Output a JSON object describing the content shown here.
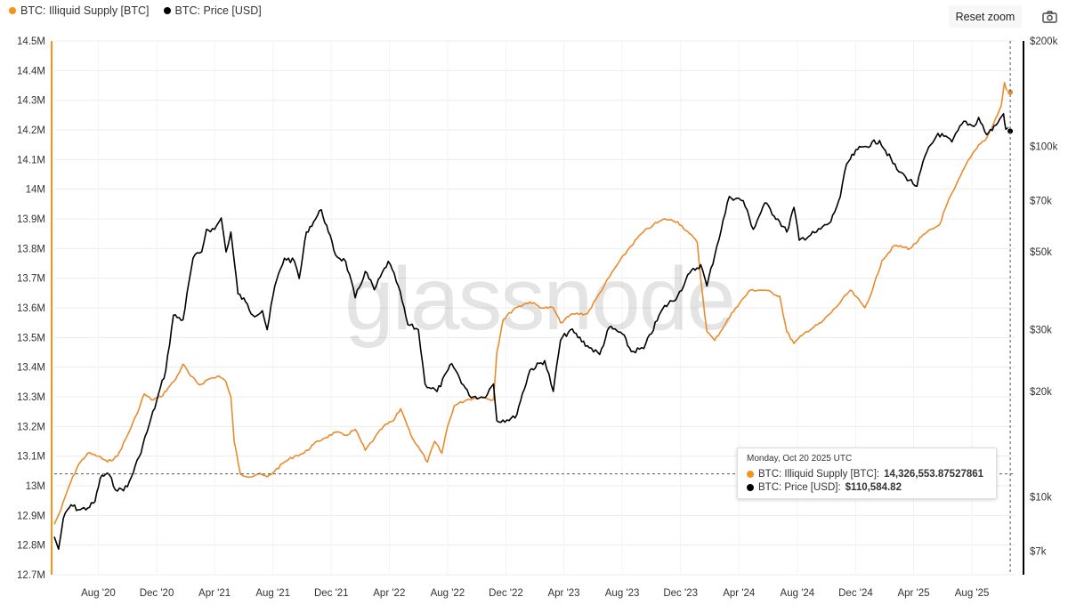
{
  "legend": {
    "series1": "BTC: Illiquid Supply [BTC]",
    "series2": "BTC: Price [USD]"
  },
  "toolbar": {
    "reset_label": "Reset zoom"
  },
  "icons": {
    "camera": "camera-icon"
  },
  "watermark": "glassnode",
  "colors": {
    "supply": "#f7931a",
    "supply_line": "#e98b2c",
    "price": "#000000"
  },
  "tooltip": {
    "date": "Monday, Oct 20 2025 UTC",
    "supply_label": "BTC: Illiquid Supply [BTC]: ",
    "supply_value": "14,326,553.87527861",
    "price_label": "BTC: Price [USD]: ",
    "price_value": "$110,584.82"
  },
  "chart_data": {
    "type": "line",
    "x_ticks": [
      "Aug '20",
      "Dec '20",
      "Apr '21",
      "Aug '21",
      "Dec '21",
      "Apr '22",
      "Aug '22",
      "Dec '22",
      "Apr '23",
      "Aug '23",
      "Dec '23",
      "Apr '24",
      "Aug '24",
      "Dec '24",
      "Apr '25",
      "Aug '25"
    ],
    "y_left_ticks": [
      "12.7M",
      "12.8M",
      "12.9M",
      "13M",
      "13.1M",
      "13.2M",
      "13.3M",
      "13.4M",
      "13.5M",
      "13.6M",
      "13.7M",
      "13.8M",
      "13.9M",
      "14M",
      "14.1M",
      "14.2M",
      "14.3M",
      "14.4M",
      "14.5M"
    ],
    "y_left_range": [
      12.7,
      14.5
    ],
    "y_right_ticks": [
      "$7k",
      "$10k",
      "$20k",
      "$30k",
      "$50k",
      "$70k",
      "$100k",
      "$200k"
    ],
    "y_right_values": [
      7000,
      10000,
      20000,
      30000,
      50000,
      70000,
      100000,
      200000
    ],
    "y_right_scale": "log",
    "x_range": [
      "2020-05-01",
      "2025-10-31"
    ],
    "grid": true,
    "legend_position": "top-left",
    "series": [
      {
        "name": "BTC: Illiquid Supply [BTC]",
        "axis": "left",
        "unit": "M BTC",
        "points": [
          [
            "2020-05-01",
            12.87
          ],
          [
            "2020-05-15",
            12.92
          ],
          [
            "2020-06-01",
            13.0
          ],
          [
            "2020-06-20",
            13.07
          ],
          [
            "2020-07-10",
            13.11
          ],
          [
            "2020-08-01",
            13.1
          ],
          [
            "2020-08-20",
            13.08
          ],
          [
            "2020-09-10",
            13.1
          ],
          [
            "2020-10-01",
            13.17
          ],
          [
            "2020-10-20",
            13.24
          ],
          [
            "2020-11-05",
            13.31
          ],
          [
            "2020-11-20",
            13.29
          ],
          [
            "2020-12-10",
            13.3
          ],
          [
            "2020-12-25",
            13.33
          ],
          [
            "2021-01-10",
            13.36
          ],
          [
            "2021-01-25",
            13.41
          ],
          [
            "2021-02-10",
            13.37
          ],
          [
            "2021-03-01",
            13.34
          ],
          [
            "2021-03-20",
            13.36
          ],
          [
            "2021-04-10",
            13.37
          ],
          [
            "2021-04-25",
            13.35
          ],
          [
            "2021-05-05",
            13.3
          ],
          [
            "2021-05-12",
            13.15
          ],
          [
            "2021-05-25",
            13.04
          ],
          [
            "2021-06-15",
            13.03
          ],
          [
            "2021-07-01",
            13.04
          ],
          [
            "2021-07-20",
            13.03
          ],
          [
            "2021-08-05",
            13.05
          ],
          [
            "2021-08-25",
            13.08
          ],
          [
            "2021-09-15",
            13.1
          ],
          [
            "2021-10-05",
            13.11
          ],
          [
            "2021-10-25",
            13.14
          ],
          [
            "2021-11-15",
            13.16
          ],
          [
            "2021-12-10",
            13.18
          ],
          [
            "2021-12-31",
            13.17
          ],
          [
            "2022-01-20",
            13.19
          ],
          [
            "2022-02-10",
            13.12
          ],
          [
            "2022-03-01",
            13.16
          ],
          [
            "2022-03-20",
            13.2
          ],
          [
            "2022-04-10",
            13.22
          ],
          [
            "2022-04-25",
            13.26
          ],
          [
            "2022-05-05",
            13.22
          ],
          [
            "2022-05-20",
            13.16
          ],
          [
            "2022-06-05",
            13.12
          ],
          [
            "2022-06-20",
            13.08
          ],
          [
            "2022-07-05",
            13.15
          ],
          [
            "2022-07-20",
            13.11
          ],
          [
            "2022-08-01",
            13.2
          ],
          [
            "2022-08-15",
            13.27
          ],
          [
            "2022-09-10",
            13.29
          ],
          [
            "2022-10-10",
            13.3
          ],
          [
            "2022-11-05",
            13.29
          ],
          [
            "2022-11-12",
            13.45
          ],
          [
            "2022-11-25",
            13.56
          ],
          [
            "2022-12-20",
            13.6
          ],
          [
            "2023-01-20",
            13.62
          ],
          [
            "2023-02-15",
            13.6
          ],
          [
            "2023-03-10",
            13.6
          ],
          [
            "2023-03-25",
            13.55
          ],
          [
            "2023-04-20",
            13.58
          ],
          [
            "2023-05-20",
            13.58
          ],
          [
            "2023-06-15",
            13.65
          ],
          [
            "2023-07-15",
            13.73
          ],
          [
            "2023-08-15",
            13.8
          ],
          [
            "2023-09-10",
            13.85
          ],
          [
            "2023-10-05",
            13.88
          ],
          [
            "2023-10-30",
            13.9
          ],
          [
            "2023-11-25",
            13.89
          ],
          [
            "2023-12-20",
            13.85
          ],
          [
            "2024-01-05",
            13.82
          ],
          [
            "2024-01-12",
            13.7
          ],
          [
            "2024-01-25",
            13.52
          ],
          [
            "2024-02-10",
            13.49
          ],
          [
            "2024-03-05",
            13.55
          ],
          [
            "2024-03-25",
            13.6
          ],
          [
            "2024-04-25",
            13.66
          ],
          [
            "2024-05-25",
            13.66
          ],
          [
            "2024-06-25",
            13.64
          ],
          [
            "2024-07-10",
            13.52
          ],
          [
            "2024-07-25",
            13.48
          ],
          [
            "2024-08-20",
            13.52
          ],
          [
            "2024-09-20",
            13.55
          ],
          [
            "2024-10-20",
            13.6
          ],
          [
            "2024-11-20",
            13.66
          ],
          [
            "2024-12-20",
            13.6
          ],
          [
            "2025-01-05",
            13.66
          ],
          [
            "2025-01-25",
            13.76
          ],
          [
            "2025-02-20",
            13.81
          ],
          [
            "2025-03-25",
            13.8
          ],
          [
            "2025-04-25",
            13.85
          ],
          [
            "2025-05-25",
            13.88
          ],
          [
            "2025-06-10",
            13.95
          ],
          [
            "2025-06-25",
            14.0
          ],
          [
            "2025-07-25",
            14.1
          ],
          [
            "2025-08-15",
            14.15
          ],
          [
            "2025-08-31",
            14.17
          ],
          [
            "2025-09-15",
            14.22
          ],
          [
            "2025-10-01",
            14.28
          ],
          [
            "2025-10-08",
            14.36
          ],
          [
            "2025-10-14",
            14.33
          ],
          [
            "2025-10-20",
            14.327
          ]
        ]
      },
      {
        "name": "BTC: Price [USD]",
        "axis": "right",
        "unit": "USD",
        "points": [
          [
            "2020-05-01",
            7700
          ],
          [
            "2020-05-10",
            7100
          ],
          [
            "2020-05-20",
            8700
          ],
          [
            "2020-06-05",
            9500
          ],
          [
            "2020-06-20",
            9200
          ],
          [
            "2020-07-10",
            9300
          ],
          [
            "2020-07-25",
            9700
          ],
          [
            "2020-08-05",
            11300
          ],
          [
            "2020-08-20",
            11700
          ],
          [
            "2020-09-10",
            10400
          ],
          [
            "2020-10-01",
            10700
          ],
          [
            "2020-10-25",
            13000
          ],
          [
            "2020-11-15",
            16000
          ],
          [
            "2020-12-01",
            18800
          ],
          [
            "2020-12-20",
            23000
          ],
          [
            "2021-01-05",
            33000
          ],
          [
            "2021-01-25",
            32000
          ],
          [
            "2021-02-15",
            48000
          ],
          [
            "2021-03-05",
            50000
          ],
          [
            "2021-03-15",
            58000
          ],
          [
            "2021-04-01",
            58000
          ],
          [
            "2021-04-15",
            62500
          ],
          [
            "2021-04-25",
            50000
          ],
          [
            "2021-05-05",
            57000
          ],
          [
            "2021-05-20",
            38000
          ],
          [
            "2021-06-05",
            36000
          ],
          [
            "2021-06-20",
            33000
          ],
          [
            "2021-07-10",
            34000
          ],
          [
            "2021-07-20",
            30000
          ],
          [
            "2021-08-05",
            40000
          ],
          [
            "2021-08-25",
            48000
          ],
          [
            "2021-09-15",
            47000
          ],
          [
            "2021-09-25",
            42000
          ],
          [
            "2021-10-10",
            57000
          ],
          [
            "2021-10-25",
            61000
          ],
          [
            "2021-11-10",
            66000
          ],
          [
            "2021-11-25",
            57000
          ],
          [
            "2021-12-10",
            49000
          ],
          [
            "2021-12-31",
            47000
          ],
          [
            "2022-01-20",
            37000
          ],
          [
            "2022-02-10",
            44000
          ],
          [
            "2022-03-01",
            39000
          ],
          [
            "2022-03-30",
            47000
          ],
          [
            "2022-04-20",
            40000
          ],
          [
            "2022-05-10",
            31000
          ],
          [
            "2022-06-01",
            30000
          ],
          [
            "2022-06-15",
            21000
          ],
          [
            "2022-07-10",
            20000
          ],
          [
            "2022-08-10",
            24000
          ],
          [
            "2022-09-15",
            19500
          ],
          [
            "2022-10-15",
            19200
          ],
          [
            "2022-11-05",
            21000
          ],
          [
            "2022-11-12",
            16500
          ],
          [
            "2022-12-20",
            16800
          ],
          [
            "2023-01-20",
            23000
          ],
          [
            "2023-02-20",
            24500
          ],
          [
            "2023-03-10",
            20000
          ],
          [
            "2023-03-25",
            28000
          ],
          [
            "2023-04-15",
            30000
          ],
          [
            "2023-05-20",
            27000
          ],
          [
            "2023-06-15",
            25500
          ],
          [
            "2023-07-05",
            30500
          ],
          [
            "2023-08-01",
            29200
          ],
          [
            "2023-08-20",
            26000
          ],
          [
            "2023-09-15",
            26500
          ],
          [
            "2023-10-25",
            34500
          ],
          [
            "2023-11-25",
            37500
          ],
          [
            "2023-12-20",
            43500
          ],
          [
            "2024-01-12",
            46000
          ],
          [
            "2024-01-25",
            40000
          ],
          [
            "2024-02-15",
            52000
          ],
          [
            "2024-03-12",
            72000
          ],
          [
            "2024-04-10",
            70000
          ],
          [
            "2024-05-01",
            58000
          ],
          [
            "2024-05-25",
            69000
          ],
          [
            "2024-06-25",
            61000
          ],
          [
            "2024-07-10",
            57000
          ],
          [
            "2024-07-25",
            67000
          ],
          [
            "2024-08-05",
            54000
          ],
          [
            "2024-09-10",
            57000
          ],
          [
            "2024-10-10",
            61000
          ],
          [
            "2024-10-30",
            72000
          ],
          [
            "2024-11-12",
            89000
          ],
          [
            "2024-12-05",
            98000
          ],
          [
            "2024-12-20",
            100000
          ],
          [
            "2025-01-20",
            104000
          ],
          [
            "2025-02-25",
            86000
          ],
          [
            "2025-03-15",
            82000
          ],
          [
            "2025-04-08",
            77000
          ],
          [
            "2025-04-25",
            94000
          ],
          [
            "2025-05-22",
            109000
          ],
          [
            "2025-06-20",
            103000
          ],
          [
            "2025-07-15",
            118000
          ],
          [
            "2025-08-05",
            114000
          ],
          [
            "2025-08-15",
            121000
          ],
          [
            "2025-09-01",
            108000
          ],
          [
            "2025-09-20",
            115000
          ],
          [
            "2025-10-06",
            124000
          ],
          [
            "2025-10-11",
            112000
          ],
          [
            "2025-10-20",
            110584.82
          ]
        ]
      }
    ]
  }
}
